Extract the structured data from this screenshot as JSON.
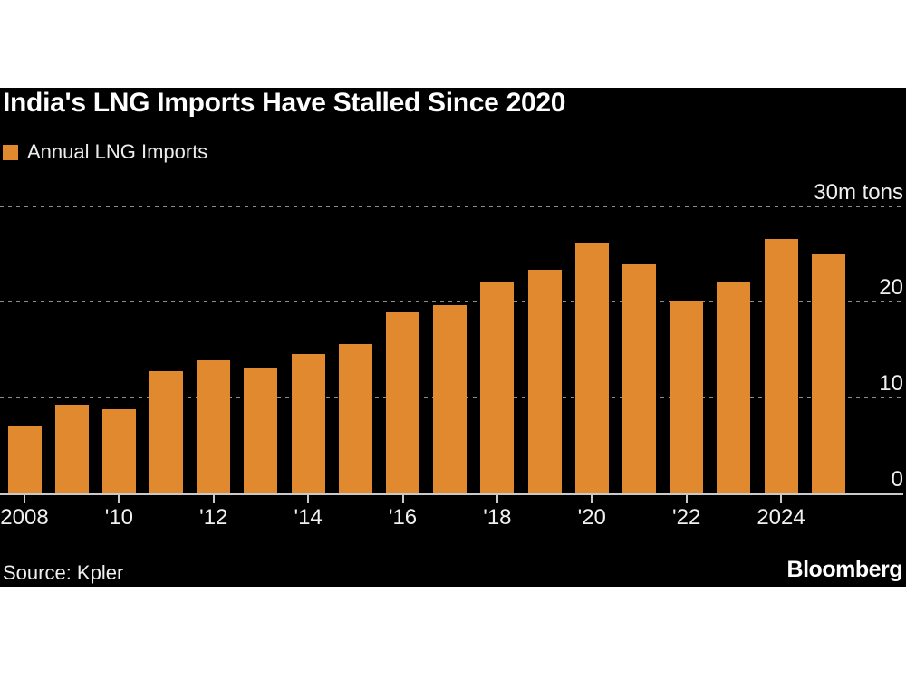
{
  "header": {
    "title": "India's LNG Imports Have Stalled Since 2020"
  },
  "legend": {
    "label": "Annual LNG Imports",
    "swatch_color": "#E0892E"
  },
  "colors": {
    "page_background": "#ffffff",
    "panel_background": "#000000",
    "bar": "#E0892E",
    "gridline": "#8d8d8d",
    "axis": "#c9c9c9",
    "text": "#f0f0f0"
  },
  "chart_data": {
    "type": "bar",
    "title": "India's LNG Imports Have Stalled Since 2020",
    "series_name": "Annual LNG Imports",
    "unit": "m tons",
    "x": [
      2008,
      2009,
      2010,
      2011,
      2012,
      2013,
      2014,
      2015,
      2016,
      2017,
      2018,
      2019,
      2020,
      2021,
      2022,
      2023,
      2024,
      2025
    ],
    "values": [
      7.0,
      9.3,
      8.8,
      12.8,
      13.9,
      13.1,
      14.6,
      15.6,
      18.9,
      19.7,
      22.1,
      23.4,
      26.2,
      23.9,
      20.0,
      22.1,
      26.6,
      25.0
    ],
    "ylim": [
      0,
      30
    ],
    "grid": "horizontal-dashed",
    "legend_position": "top-left",
    "y_ticks": [
      {
        "value": 0,
        "label": "0"
      },
      {
        "value": 10,
        "label": "10"
      },
      {
        "value": 20,
        "label": "20"
      },
      {
        "value": 30,
        "label": "30m tons"
      }
    ],
    "x_ticks": [
      {
        "year": 2008,
        "label": "2008"
      },
      {
        "year": 2010,
        "label": "'10"
      },
      {
        "year": 2012,
        "label": "'12"
      },
      {
        "year": 2014,
        "label": "'14"
      },
      {
        "year": 2016,
        "label": "'16"
      },
      {
        "year": 2018,
        "label": "'18"
      },
      {
        "year": 2020,
        "label": "'20"
      },
      {
        "year": 2022,
        "label": "'22"
      },
      {
        "year": 2024,
        "label": "2024"
      }
    ]
  },
  "footer": {
    "source": "Source: Kpler",
    "brand": "Bloomberg"
  }
}
